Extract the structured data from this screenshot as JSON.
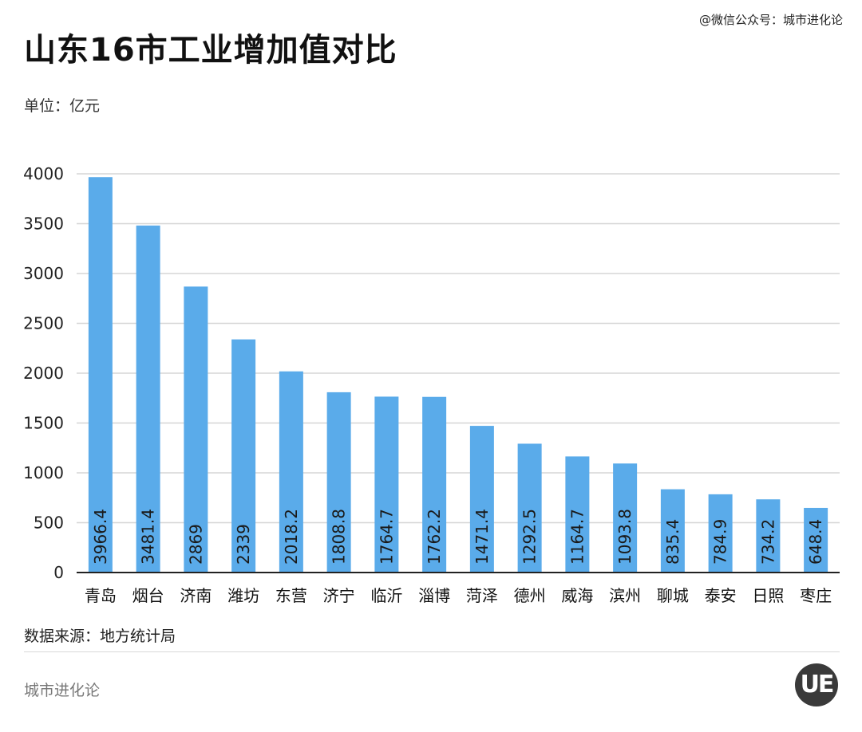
{
  "header": {
    "title": "山东16市工业增加值对比",
    "wechat": "@微信公众号：城市进化论",
    "unit": "单位：亿元"
  },
  "footer": {
    "source": "数据来源：地方统计局",
    "brand": "城市进化论",
    "logo_text": "UE"
  },
  "colors": {
    "bar": "#5aabea",
    "grid": "#d6d6d6",
    "axis": "#222222",
    "label": "#1a1a1a"
  },
  "chart_data": {
    "type": "bar",
    "categories": [
      "青岛",
      "烟台",
      "济南",
      "潍坊",
      "东营",
      "济宁",
      "临沂",
      "淄博",
      "菏泽",
      "德州",
      "威海",
      "滨州",
      "聊城",
      "泰安",
      "日照",
      "枣庄"
    ],
    "values": [
      3966.4,
      3481.4,
      2869,
      2339,
      2018.2,
      1808.8,
      1764.7,
      1762.2,
      1471.4,
      1292.5,
      1164.7,
      1093.8,
      835.4,
      784.9,
      734.2,
      648.4
    ],
    "value_labels": [
      "3966.4",
      "3481.4",
      "2869",
      "2339",
      "2018.2",
      "1808.8",
      "1764.7",
      "1762.2",
      "1471.4",
      "1292.5",
      "1164.7",
      "1093.8",
      "835.4",
      "784.9",
      "734.2",
      "648.4"
    ],
    "yticks": [
      "0",
      "500",
      "1000",
      "1500",
      "2000",
      "2500",
      "3000",
      "3500",
      "4000"
    ],
    "ylim": [
      0,
      4000
    ],
    "grid": true
  }
}
